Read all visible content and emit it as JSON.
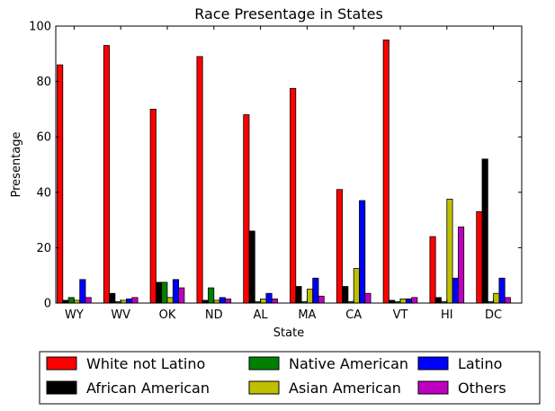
{
  "chart_data": {
    "type": "bar",
    "title": "Race Presentage in States",
    "xlabel": "State",
    "ylabel": "Presentage",
    "ylim": [
      0,
      100
    ],
    "yticks": [
      0,
      20,
      40,
      60,
      80,
      100
    ],
    "grid": false,
    "legend_position": "below-center",
    "categories": [
      "WY",
      "WV",
      "OK",
      "ND",
      "AL",
      "MA",
      "CA",
      "VT",
      "HI",
      "DC"
    ],
    "series": [
      {
        "name": "White not Latino",
        "color": "#ff0000",
        "values": [
          86,
          93,
          70,
          89,
          68,
          77.5,
          41,
          95,
          24,
          33
        ]
      },
      {
        "name": "African American",
        "color": "#000000",
        "values": [
          1,
          3.5,
          7.5,
          1,
          26,
          6,
          6,
          1,
          2,
          52
        ]
      },
      {
        "name": "Native American",
        "color": "#008000",
        "values": [
          2,
          0.5,
          7.5,
          5.5,
          0.5,
          0.5,
          0.5,
          0.5,
          0.5,
          0.5
        ]
      },
      {
        "name": "Asian American",
        "color": "#bfbf00",
        "values": [
          1,
          1,
          2,
          1,
          1.5,
          5,
          12.5,
          1.5,
          37.5,
          3.5
        ]
      },
      {
        "name": "Latino",
        "color": "#0000ff",
        "values": [
          8.5,
          1.5,
          8.5,
          2,
          3.5,
          9,
          37,
          1.5,
          9,
          9
        ]
      },
      {
        "name": "Others",
        "color": "#bf00bf",
        "values": [
          2,
          2,
          5.5,
          1.5,
          1.5,
          2.5,
          3.5,
          2,
          27.5,
          2
        ]
      }
    ]
  }
}
